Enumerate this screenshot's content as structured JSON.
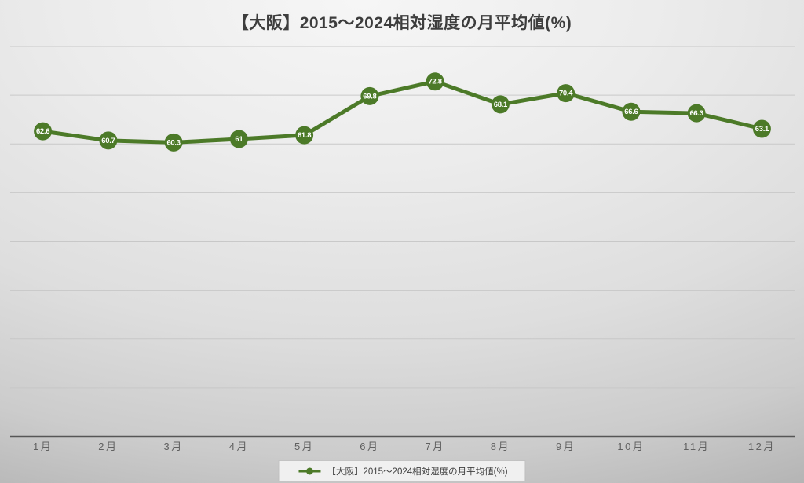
{
  "title": "【大阪】2015～2024相対湿度の月平均値(%)",
  "legend": {
    "label": "【大阪】2015～2024相対湿度の月平均値(%)"
  },
  "colors": {
    "series_green": "#4c7a28",
    "marker_fill": "#4c7a28",
    "data_label_text": "#ffffff",
    "gridline": "#c6c6c6",
    "axis_line": "#565656",
    "axis_label_text": "#616161",
    "title_text": "#3d3d3d",
    "legend_background": "#f3f3f3"
  },
  "chart_data": {
    "type": "line",
    "title": "【大阪】2015～2024相対湿度の月平均値(%)",
    "categories": [
      "1月",
      "2月",
      "3月",
      "4月",
      "5月",
      "6月",
      "7月",
      "8月",
      "9月",
      "10月",
      "11月",
      "12月"
    ],
    "series": [
      {
        "name": "【大阪】2015～2024相対湿度の月平均値(%)",
        "values": [
          62.6,
          60.7,
          60.3,
          61,
          61.8,
          69.8,
          72.8,
          68.1,
          70.4,
          66.6,
          66.3,
          63.1
        ]
      }
    ],
    "data_labels": [
      "62.6",
      "60.7",
      "60.3",
      "61",
      "61.8",
      "69.8",
      "72.8",
      "68.1",
      "70.4",
      "66.6",
      "66.3",
      "63.1"
    ],
    "xlabel": "",
    "ylabel": "",
    "ylim": [
      0,
      80
    ],
    "y_major_unit": 10,
    "y_axis_labels_visible": false,
    "grid": true,
    "marker_style": "filled-circle-with-label",
    "legend_position": "bottom"
  }
}
